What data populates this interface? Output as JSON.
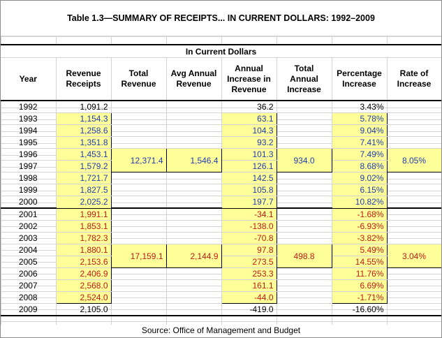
{
  "title": "Table 1.3—SUMMARY OF RECEIPTS... IN CURRENT DOLLARS: 1992–2009",
  "subheading": "In Current Dollars",
  "columns": [
    "Year",
    "Revenue Receipts",
    "Total Revenue",
    "Avg Annual Revenue",
    "Annual Increase in Revenue",
    "Total Annual Increase",
    "Percentage Increase",
    "Rate of Increase"
  ],
  "rows": [
    {
      "year": "1992",
      "receipts": "1,091.2",
      "increase": "36.2",
      "pct": "3.43%"
    },
    {
      "year": "1993",
      "receipts": "1,154.3",
      "increase": "63.1",
      "pct": "5.78%"
    },
    {
      "year": "1994",
      "receipts": "1,258.6",
      "increase": "104.3",
      "pct": "9.04%"
    },
    {
      "year": "1995",
      "receipts": "1,351.8",
      "increase": "93.2",
      "pct": "7.41%"
    },
    {
      "year": "1996",
      "receipts": "1,453.1",
      "increase": "101.3",
      "pct": "7.49%"
    },
    {
      "year": "1997",
      "receipts": "1,579.2",
      "increase": "126.1",
      "pct": "8.68%"
    },
    {
      "year": "1998",
      "receipts": "1,721.7",
      "increase": "142.5",
      "pct": "9.02%"
    },
    {
      "year": "1999",
      "receipts": "1,827.5",
      "increase": "105.8",
      "pct": "6.15%"
    },
    {
      "year": "2000",
      "receipts": "2,025.2",
      "increase": "197.7",
      "pct": "10.82%"
    },
    {
      "year": "2001",
      "receipts": "1,991.1",
      "increase": "-34.1",
      "pct": "-1.68%"
    },
    {
      "year": "2002",
      "receipts": "1,853.1",
      "increase": "-138.0",
      "pct": "-6.93%"
    },
    {
      "year": "2003",
      "receipts": "1,782.3",
      "increase": "-70.8",
      "pct": "-3.82%"
    },
    {
      "year": "2004",
      "receipts": "1,880.1",
      "increase": "97.8",
      "pct": "5.49%"
    },
    {
      "year": "2005",
      "receipts": "2,153.6",
      "increase": "273.5",
      "pct": "14.55%"
    },
    {
      "year": "2006",
      "receipts": "2,406.9",
      "increase": "253.3",
      "pct": "11.76%"
    },
    {
      "year": "2007",
      "receipts": "2,568.0",
      "increase": "161.1",
      "pct": "6.69%"
    },
    {
      "year": "2008",
      "receipts": "2,524.0",
      "increase": "-44.0",
      "pct": "-1.71%"
    },
    {
      "year": "2009",
      "receipts": "2,105.0",
      "increase": "-419.0",
      "pct": "-16.60%"
    }
  ],
  "summary": {
    "period1": {
      "total_revenue": "12,371.4",
      "avg_revenue": "1,546.4",
      "total_increase": "934.0",
      "rate": "8.05%"
    },
    "period2": {
      "total_revenue": "17,159.1",
      "avg_revenue": "2,144.9",
      "total_increase": "498.8",
      "rate": "3.04%"
    }
  },
  "source": "Source:  Office of Management and Budget",
  "colors": {
    "highlight": "#ffff99",
    "positive": "#1f3bb3",
    "negative": "#c01818"
  }
}
